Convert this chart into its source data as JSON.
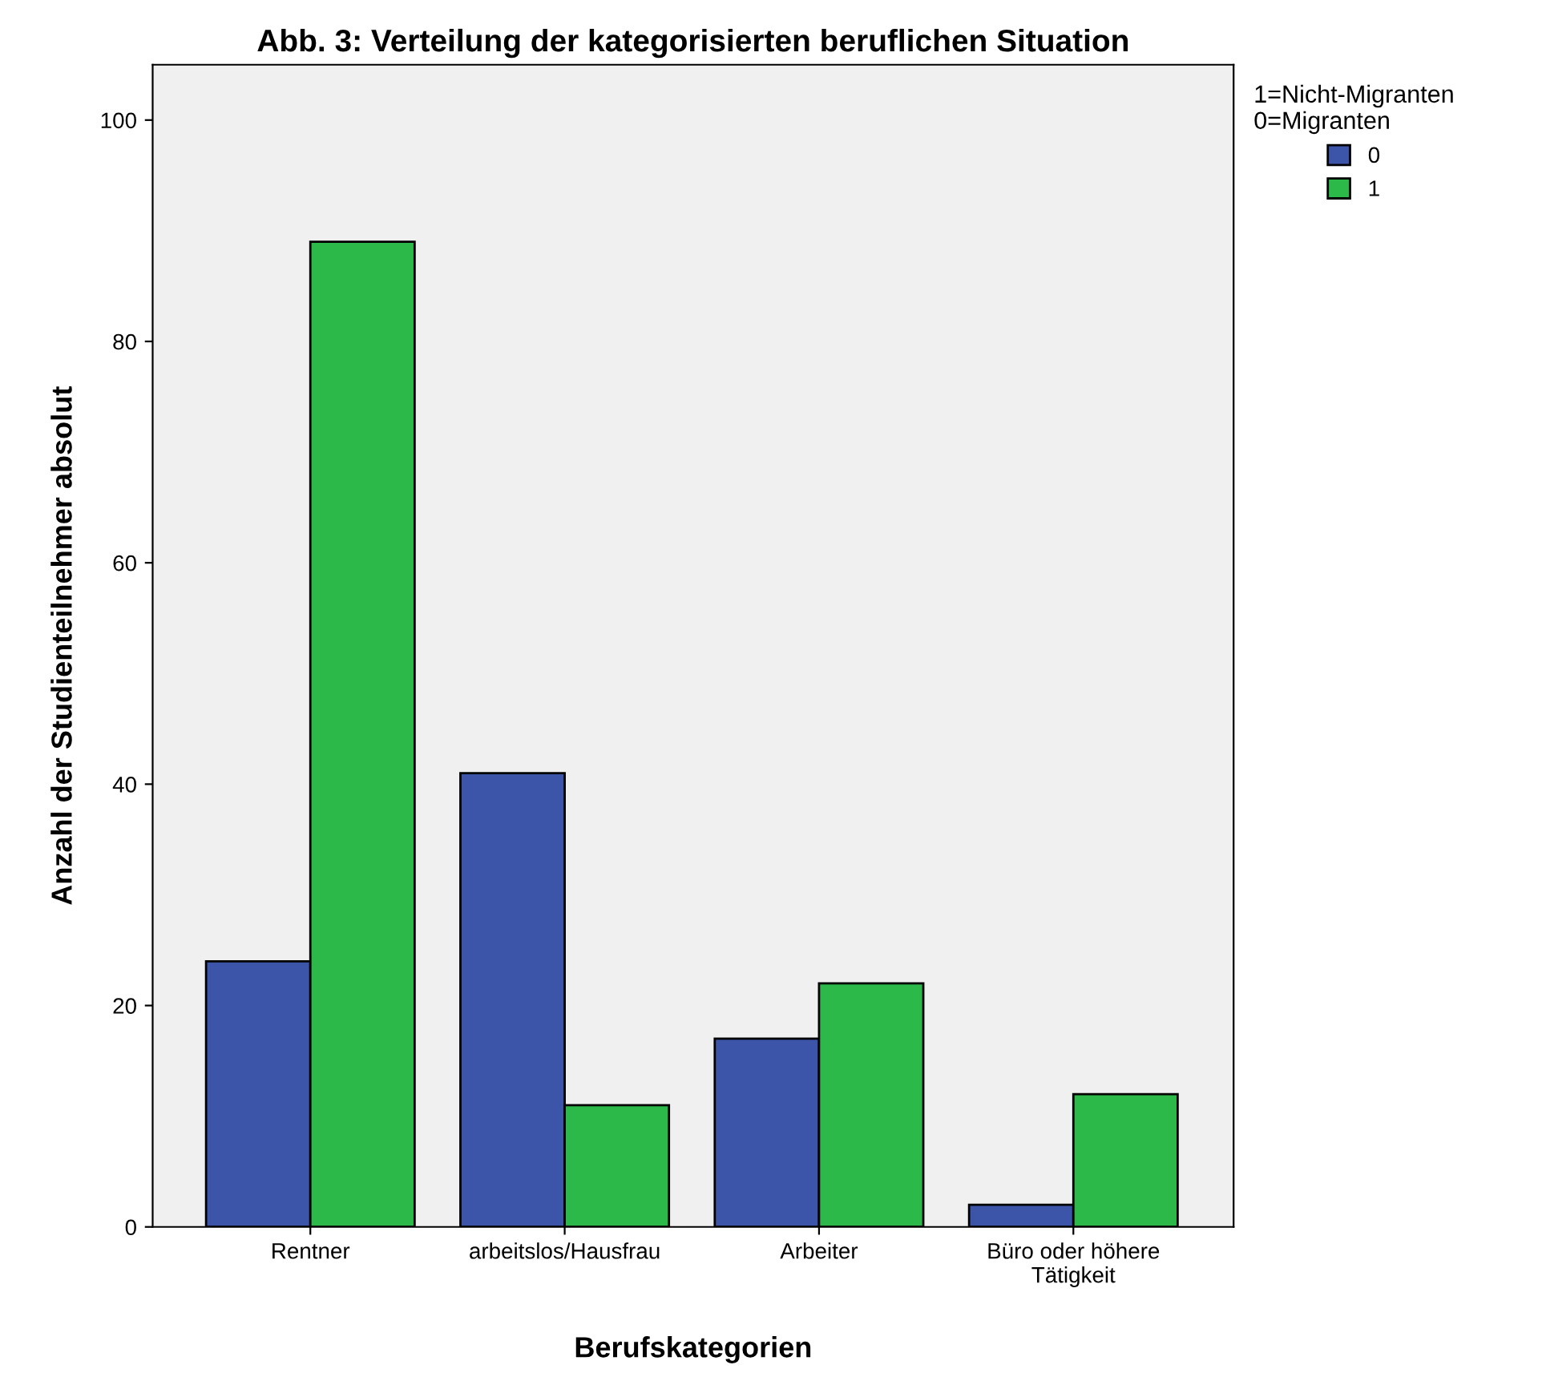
{
  "chart_data": {
    "type": "bar",
    "title": "Abb. 3: Verteilung der kategorisierten beruflichen Situation",
    "xlabel": "Berufskategorien",
    "ylabel": "Anzahl der Studienteilnehmer absolut",
    "legend_title": "1=Nicht-Migranten\n0=Migranten",
    "categories": [
      "Rentner",
      "arbeitslos/Hausfrau",
      "Arbeiter",
      "Büro oder höhere Tätigkeit"
    ],
    "series": [
      {
        "name": "0",
        "color": "#3d55a8",
        "values": [
          24,
          41,
          17,
          2
        ]
      },
      {
        "name": "1",
        "color": "#2db84a",
        "values": [
          89,
          11,
          22,
          12
        ]
      }
    ],
    "ylim": [
      0,
      105
    ],
    "yticks": [
      0,
      20,
      40,
      60,
      80,
      100
    ],
    "grid": false,
    "legend": "top right"
  }
}
